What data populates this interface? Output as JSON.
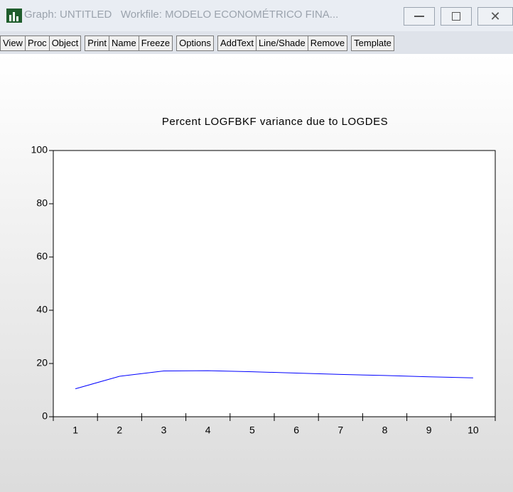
{
  "window": {
    "title": "Graph: UNTITLED   Workfile: MODELO ECONOMÉTRICO FINA...",
    "toolbar": [
      [
        "View",
        "Proc",
        "Object"
      ],
      [
        "Print",
        "Name",
        "Freeze"
      ],
      [
        "Options"
      ],
      [
        "AddText",
        "Line/Shade",
        "Remove"
      ],
      [
        "Template"
      ]
    ]
  },
  "chart_data": {
    "type": "line",
    "title": "Percent LOGFBKF variance due to LOGDES",
    "categories": [
      "1",
      "2",
      "3",
      "4",
      "5",
      "6",
      "7",
      "8",
      "9",
      "10"
    ],
    "values": [
      10.5,
      15.2,
      17.2,
      17.3,
      16.9,
      16.4,
      15.9,
      15.5,
      15.0,
      14.6
    ],
    "color": "#0000ff",
    "ylim": [
      0,
      100
    ],
    "yticks": [
      0,
      20,
      40,
      60,
      80,
      100
    ]
  }
}
